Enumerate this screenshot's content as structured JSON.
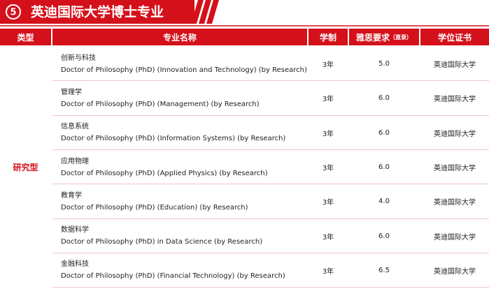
{
  "header": {
    "badge": "5",
    "title": "英迪国际大学博士专业"
  },
  "table": {
    "columns": [
      "类型",
      "专业名称",
      "学制",
      "雅思要求",
      "学位证书"
    ],
    "column_note": "（直录）",
    "type": "研究型",
    "rows": [
      {
        "chinese": "创新与科技",
        "english": "Doctor of Philosophy (PhD) (Innovation and Technology) (by Research)",
        "duration": "3年",
        "ielts": "5.0",
        "degree": "英迪国际大学"
      },
      {
        "chinese": "管理学",
        "english": "Doctor of Philosophy (PhD) (Management) (by Research)",
        "duration": "3年",
        "ielts": "6.0",
        "degree": "英迪国际大学"
      },
      {
        "chinese": "信息系统",
        "english": "Doctor of Philosophy (PhD) (Information Systems) (by Research)",
        "duration": "3年",
        "ielts": "6.0",
        "degree": "英迪国际大学"
      },
      {
        "chinese": "应用物理",
        "english": "Doctor of Philosophy (PhD) (Applied Physics) (by Research)",
        "duration": "3年",
        "ielts": "6.0",
        "degree": "英迪国际大学"
      },
      {
        "chinese": "教育学",
        "english": "Doctor of Philosophy (PhD) (Education) (by Research)",
        "duration": "3年",
        "ielts": "4.0",
        "degree": "英迪国际大学"
      },
      {
        "chinese": "数据科学",
        "english": "Doctor of Philosophy (PhD) in Data Science (by Research)",
        "duration": "3年",
        "ielts": "6.0",
        "degree": "英迪国际大学"
      },
      {
        "chinese": "金融科技",
        "english": "Doctor of Philosophy (PhD) (Financial Technology) (by Research)",
        "duration": "3年",
        "ielts": "6.5",
        "degree": "英迪国际大学"
      }
    ]
  }
}
